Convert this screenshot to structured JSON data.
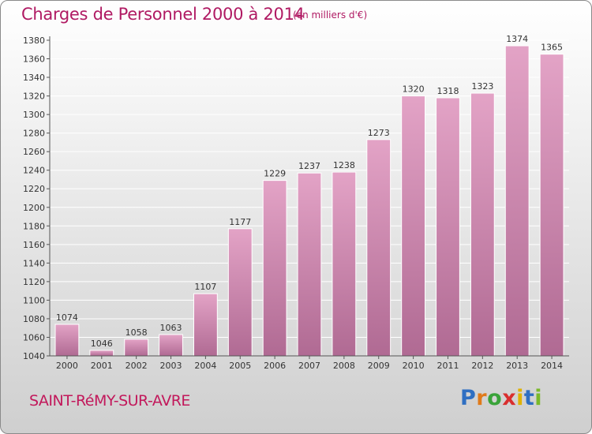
{
  "header": {
    "title": "Charges de Personnel 2000 à 2014",
    "subtitle": "(en milliers d'€)"
  },
  "footer": {
    "commune": "SAINT-RéMY-SUR-AVRE",
    "logo_letters": [
      "P",
      "r",
      "o",
      "x",
      "i",
      "t",
      "i"
    ],
    "logo_colors": [
      "#2f6fc2",
      "#e07a1a",
      "#3aa33a",
      "#d92e2e",
      "#e0b200",
      "#2f6fc2",
      "#7ab92a"
    ]
  },
  "colors": {
    "bar": "#d98db5",
    "bar_dark": "#b06a93",
    "grid": "#ffffff",
    "title": "#b01a63"
  },
  "chart_data": {
    "type": "bar",
    "title": "Charges de Personnel 2000 à 2014",
    "subtitle": "(en milliers d'€)",
    "categories": [
      "2000",
      "2001",
      "2002",
      "2003",
      "2004",
      "2005",
      "2006",
      "2007",
      "2008",
      "2009",
      "2010",
      "2011",
      "2012",
      "2013",
      "2014"
    ],
    "values": [
      1074,
      1046,
      1058,
      1063,
      1107,
      1177,
      1229,
      1237,
      1238,
      1273,
      1320,
      1318,
      1323,
      1374,
      1365
    ],
    "ylim": [
      1040,
      1380
    ],
    "yticks": [
      1040,
      1060,
      1080,
      1100,
      1120,
      1140,
      1160,
      1180,
      1200,
      1220,
      1240,
      1260,
      1280,
      1300,
      1320,
      1340,
      1360,
      1380
    ],
    "xlabel": "",
    "ylabel": "",
    "grid": true
  }
}
